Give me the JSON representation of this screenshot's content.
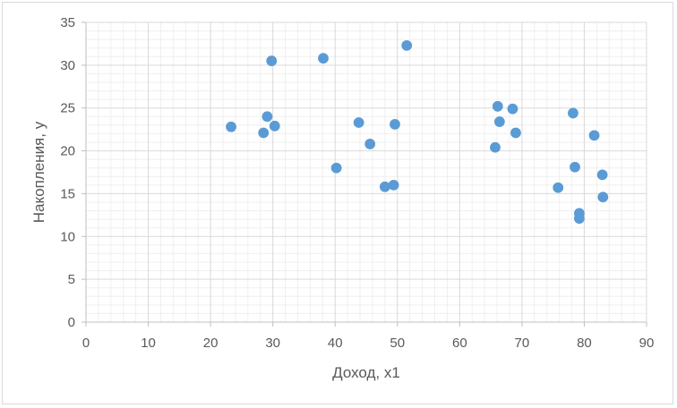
{
  "chart_data": {
    "type": "scatter",
    "title": "",
    "xlabel": "Доход, x1",
    "ylabel": "Накопления, y",
    "xlim": [
      0,
      90
    ],
    "ylim": [
      0,
      35
    ],
    "x_ticks": [
      "0",
      "10",
      "20",
      "30",
      "40",
      "50",
      "60",
      "70",
      "80",
      "90"
    ],
    "y_ticks": [
      "0",
      "5",
      "10",
      "15",
      "20",
      "25",
      "30",
      "35"
    ],
    "grid": "major and minor",
    "legend": "none",
    "marker_color": "#5b9bd5",
    "points": [
      {
        "x": 23.3,
        "y": 22.8
      },
      {
        "x": 28.5,
        "y": 22.1
      },
      {
        "x": 29.1,
        "y": 24.0
      },
      {
        "x": 30.3,
        "y": 22.9
      },
      {
        "x": 29.8,
        "y": 30.5
      },
      {
        "x": 38.1,
        "y": 30.8
      },
      {
        "x": 40.2,
        "y": 18.0
      },
      {
        "x": 43.8,
        "y": 23.3
      },
      {
        "x": 45.6,
        "y": 20.8
      },
      {
        "x": 48.0,
        "y": 15.8
      },
      {
        "x": 49.4,
        "y": 16.0
      },
      {
        "x": 49.6,
        "y": 23.1
      },
      {
        "x": 51.5,
        "y": 32.3
      },
      {
        "x": 65.7,
        "y": 20.4
      },
      {
        "x": 66.1,
        "y": 25.2
      },
      {
        "x": 66.4,
        "y": 23.4
      },
      {
        "x": 68.5,
        "y": 24.9
      },
      {
        "x": 69.0,
        "y": 22.1
      },
      {
        "x": 75.8,
        "y": 15.7
      },
      {
        "x": 78.2,
        "y": 24.4
      },
      {
        "x": 78.5,
        "y": 18.1
      },
      {
        "x": 79.2,
        "y": 12.7
      },
      {
        "x": 79.2,
        "y": 12.1
      },
      {
        "x": 81.6,
        "y": 21.8
      },
      {
        "x": 82.9,
        "y": 17.2
      },
      {
        "x": 83.0,
        "y": 14.6
      }
    ]
  }
}
